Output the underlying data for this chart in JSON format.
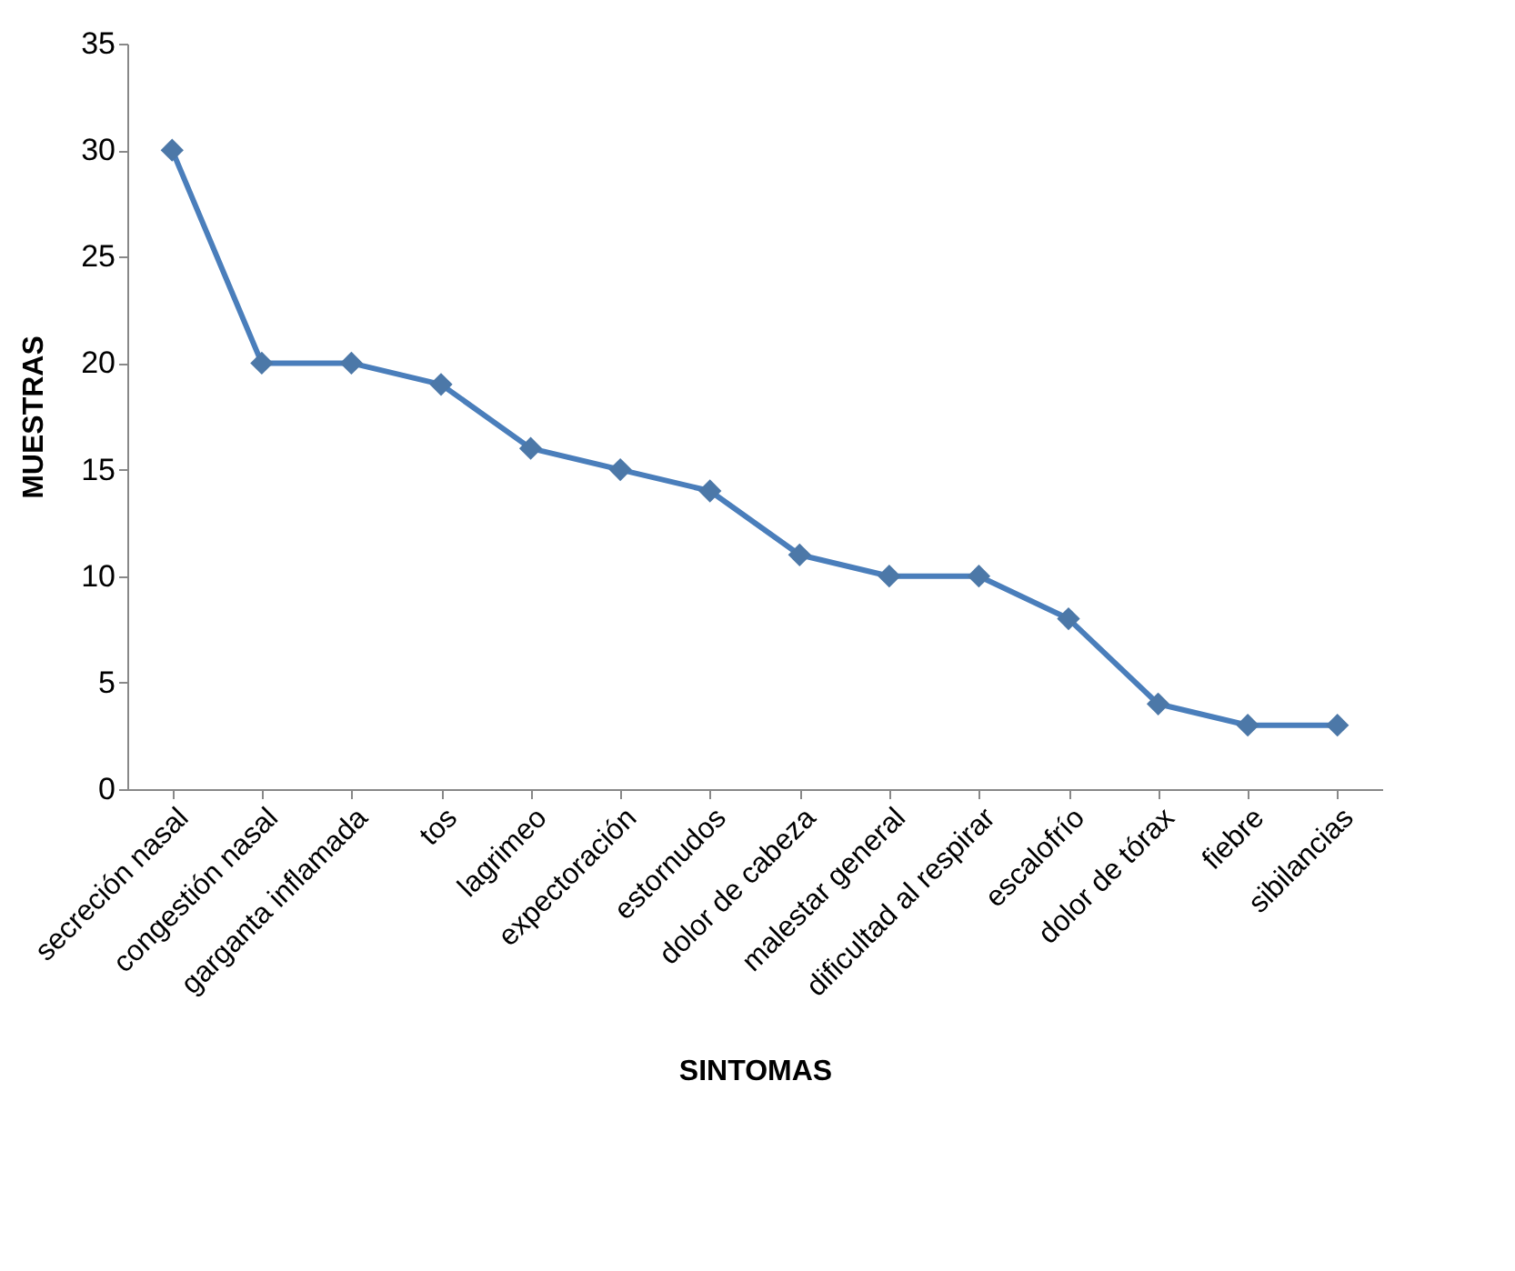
{
  "chart_data": {
    "type": "line",
    "xlabel": "SINTOMAS",
    "ylabel": "MUESTRAS",
    "categories": [
      "secreción nasal",
      "congestión nasal",
      "garganta inflamada",
      "tos",
      "lagrimeo",
      "expectoración",
      "estornudos",
      "dolor de cabeza",
      "malestar general",
      "dificultad al respirar",
      "escalofrío",
      "dolor de tórax",
      "fiebre",
      "sibilancias"
    ],
    "series": [
      {
        "color": "#4a7ebb",
        "values": [
          30,
          20,
          20,
          19,
          16,
          15,
          14,
          11,
          10,
          10,
          8,
          4,
          3,
          3
        ]
      }
    ],
    "ylim": [
      0,
      35
    ],
    "yticks": [
      0,
      5,
      10,
      15,
      20,
      25,
      30,
      35
    ],
    "marker": "diamond",
    "line_style": "solid"
  }
}
